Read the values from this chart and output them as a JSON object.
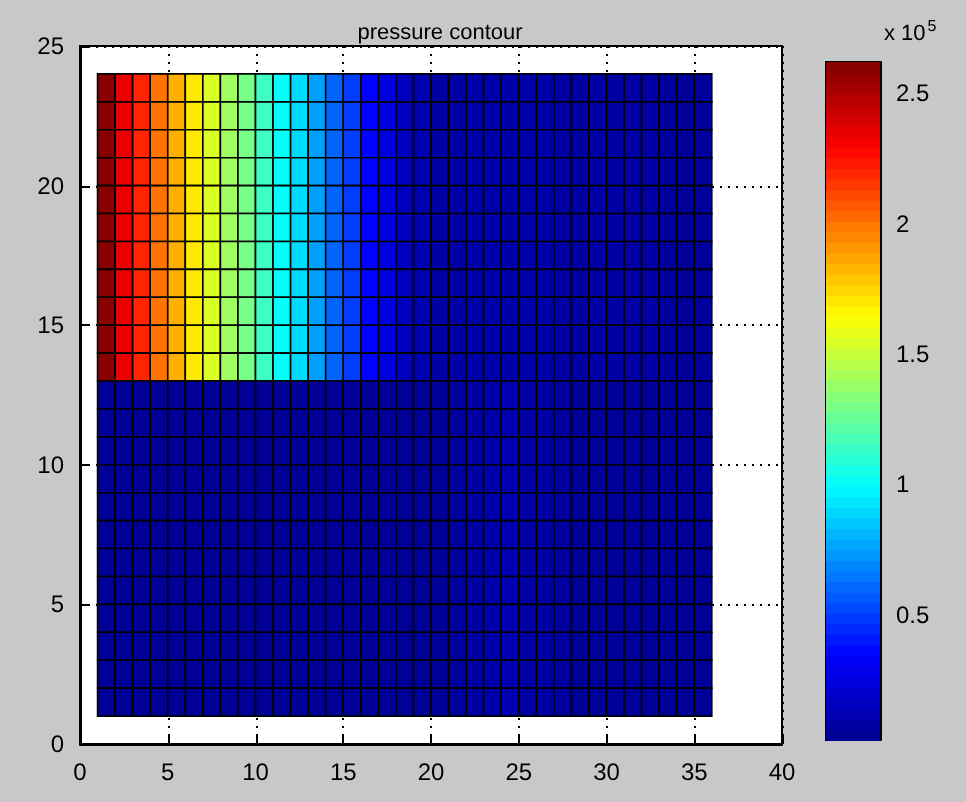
{
  "chart_data": {
    "type": "heatmap",
    "title": "pressure contour",
    "clabel": "x 10$^{5}$",
    "x": [
      1.5,
      2.5,
      3.5,
      4.5,
      5.5,
      6.5,
      7.5,
      8.5,
      9.5,
      10.5,
      11.5,
      12.5,
      13.5,
      14.5,
      15.5,
      16.5,
      17.5,
      18.5,
      19.5,
      20.5,
      21.5,
      22.5,
      23.5,
      24.5,
      25.5,
      26.5,
      27.5,
      28.5,
      29.5,
      30.5,
      31.5,
      32.5,
      33.5,
      34.5,
      35.5
    ],
    "y": [
      23.5,
      22.5,
      21.5,
      20.5,
      19.5,
      18.5,
      17.5,
      16.5,
      15.5,
      14.5,
      13.5,
      12.5,
      11.5,
      10.5,
      9.5,
      8.5,
      7.5,
      6.5,
      5.5,
      4.5,
      3.5,
      2.5,
      1.5
    ],
    "cells": [
      [
        2.6,
        2.35,
        2.2,
        2.0,
        1.85,
        1.7,
        1.55,
        1.4,
        1.3,
        1.15,
        1.0,
        0.9,
        0.75,
        0.6,
        0.5,
        0.35,
        0.25,
        0.15,
        0.12,
        0.08,
        0.08,
        0.1,
        0.1,
        0.1,
        0.1,
        0.1,
        0.08,
        0.08,
        0.08,
        0.08,
        0.08,
        0.08,
        0.06,
        0.05,
        0.06
      ],
      [
        2.6,
        2.35,
        2.2,
        2.0,
        1.85,
        1.7,
        1.55,
        1.4,
        1.3,
        1.15,
        1.0,
        0.9,
        0.75,
        0.6,
        0.5,
        0.35,
        0.25,
        0.15,
        0.12,
        0.08,
        0.08,
        0.1,
        0.1,
        0.1,
        0.1,
        0.1,
        0.08,
        0.08,
        0.08,
        0.08,
        0.08,
        0.08,
        0.06,
        0.05,
        0.06
      ],
      [
        2.6,
        2.35,
        2.2,
        2.0,
        1.85,
        1.7,
        1.55,
        1.4,
        1.3,
        1.15,
        1.0,
        0.9,
        0.75,
        0.6,
        0.5,
        0.35,
        0.25,
        0.15,
        0.12,
        0.08,
        0.08,
        0.1,
        0.1,
        0.1,
        0.1,
        0.1,
        0.08,
        0.08,
        0.08,
        0.08,
        0.08,
        0.08,
        0.06,
        0.05,
        0.06
      ],
      [
        2.6,
        2.35,
        2.2,
        2.0,
        1.85,
        1.7,
        1.55,
        1.4,
        1.3,
        1.15,
        1.0,
        0.9,
        0.75,
        0.6,
        0.5,
        0.35,
        0.25,
        0.15,
        0.12,
        0.08,
        0.08,
        0.1,
        0.1,
        0.1,
        0.1,
        0.1,
        0.08,
        0.08,
        0.08,
        0.08,
        0.08,
        0.08,
        0.06,
        0.05,
        0.06
      ],
      [
        2.6,
        2.35,
        2.2,
        2.0,
        1.85,
        1.7,
        1.55,
        1.4,
        1.3,
        1.15,
        1.0,
        0.9,
        0.75,
        0.6,
        0.5,
        0.35,
        0.25,
        0.15,
        0.12,
        0.08,
        0.08,
        0.1,
        0.1,
        0.1,
        0.1,
        0.1,
        0.08,
        0.08,
        0.08,
        0.08,
        0.08,
        0.08,
        0.06,
        0.05,
        0.06
      ],
      [
        2.6,
        2.35,
        2.2,
        2.0,
        1.85,
        1.7,
        1.55,
        1.4,
        1.3,
        1.15,
        1.0,
        0.9,
        0.75,
        0.6,
        0.5,
        0.35,
        0.25,
        0.15,
        0.12,
        0.08,
        0.08,
        0.1,
        0.1,
        0.1,
        0.1,
        0.1,
        0.08,
        0.08,
        0.08,
        0.08,
        0.08,
        0.08,
        0.06,
        0.05,
        0.06
      ],
      [
        2.6,
        2.35,
        2.2,
        2.0,
        1.85,
        1.7,
        1.55,
        1.4,
        1.3,
        1.15,
        1.0,
        0.9,
        0.75,
        0.6,
        0.5,
        0.35,
        0.25,
        0.15,
        0.12,
        0.08,
        0.08,
        0.1,
        0.1,
        0.1,
        0.1,
        0.1,
        0.08,
        0.08,
        0.08,
        0.08,
        0.08,
        0.08,
        0.06,
        0.05,
        0.06
      ],
      [
        2.6,
        2.35,
        2.2,
        2.0,
        1.85,
        1.7,
        1.55,
        1.4,
        1.3,
        1.15,
        1.0,
        0.9,
        0.75,
        0.6,
        0.5,
        0.35,
        0.25,
        0.15,
        0.12,
        0.08,
        0.08,
        0.1,
        0.1,
        0.1,
        0.1,
        0.1,
        0.08,
        0.08,
        0.08,
        0.08,
        0.08,
        0.08,
        0.06,
        0.05,
        0.06
      ],
      [
        2.6,
        2.35,
        2.2,
        2.0,
        1.85,
        1.7,
        1.55,
        1.4,
        1.3,
        1.15,
        1.0,
        0.9,
        0.75,
        0.6,
        0.5,
        0.35,
        0.25,
        0.15,
        0.12,
        0.08,
        0.08,
        0.1,
        0.1,
        0.1,
        0.1,
        0.1,
        0.08,
        0.08,
        0.08,
        0.08,
        0.08,
        0.08,
        0.06,
        0.05,
        0.06
      ],
      [
        2.6,
        2.35,
        2.2,
        2.0,
        1.85,
        1.7,
        1.55,
        1.4,
        1.3,
        1.15,
        1.0,
        0.9,
        0.75,
        0.6,
        0.5,
        0.35,
        0.25,
        0.15,
        0.12,
        0.08,
        0.08,
        0.1,
        0.1,
        0.1,
        0.1,
        0.1,
        0.08,
        0.08,
        0.08,
        0.08,
        0.08,
        0.08,
        0.06,
        0.05,
        0.06
      ],
      [
        2.6,
        2.35,
        2.2,
        2.0,
        1.85,
        1.7,
        1.55,
        1.4,
        1.3,
        1.15,
        1.0,
        0.9,
        0.75,
        0.6,
        0.5,
        0.35,
        0.25,
        0.15,
        0.12,
        0.08,
        0.08,
        0.1,
        0.1,
        0.1,
        0.1,
        0.1,
        0.08,
        0.08,
        0.08,
        0.08,
        0.08,
        0.08,
        0.06,
        0.05,
        0.06
      ],
      [
        0.04,
        0.04,
        0.04,
        0.04,
        0.04,
        0.04,
        0.04,
        0.04,
        0.04,
        0.04,
        0.04,
        0.04,
        0.04,
        0.04,
        0.04,
        0.04,
        0.04,
        0.04,
        0.04,
        0.04,
        0.06,
        0.08,
        0.1,
        0.12,
        0.08,
        0.08,
        0.07,
        0.05,
        0.05,
        0.05,
        0.05,
        0.05,
        0.05,
        0.05,
        0.05
      ],
      [
        0.04,
        0.04,
        0.04,
        0.04,
        0.04,
        0.04,
        0.04,
        0.04,
        0.04,
        0.04,
        0.04,
        0.04,
        0.04,
        0.04,
        0.04,
        0.04,
        0.04,
        0.04,
        0.04,
        0.04,
        0.06,
        0.08,
        0.1,
        0.12,
        0.08,
        0.08,
        0.07,
        0.05,
        0.05,
        0.05,
        0.05,
        0.05,
        0.05,
        0.05,
        0.05
      ],
      [
        0.04,
        0.04,
        0.04,
        0.04,
        0.04,
        0.04,
        0.04,
        0.04,
        0.04,
        0.04,
        0.04,
        0.04,
        0.04,
        0.04,
        0.04,
        0.04,
        0.04,
        0.04,
        0.04,
        0.04,
        0.06,
        0.08,
        0.1,
        0.12,
        0.08,
        0.08,
        0.07,
        0.05,
        0.05,
        0.05,
        0.05,
        0.05,
        0.05,
        0.05,
        0.05
      ],
      [
        0.04,
        0.04,
        0.04,
        0.04,
        0.04,
        0.04,
        0.04,
        0.04,
        0.04,
        0.04,
        0.04,
        0.04,
        0.04,
        0.04,
        0.04,
        0.04,
        0.04,
        0.04,
        0.04,
        0.04,
        0.06,
        0.08,
        0.1,
        0.12,
        0.08,
        0.08,
        0.07,
        0.05,
        0.05,
        0.05,
        0.05,
        0.05,
        0.05,
        0.05,
        0.05
      ],
      [
        0.04,
        0.04,
        0.04,
        0.04,
        0.04,
        0.04,
        0.04,
        0.04,
        0.04,
        0.04,
        0.04,
        0.04,
        0.04,
        0.04,
        0.04,
        0.04,
        0.04,
        0.04,
        0.04,
        0.04,
        0.06,
        0.08,
        0.1,
        0.12,
        0.08,
        0.08,
        0.07,
        0.05,
        0.05,
        0.05,
        0.05,
        0.05,
        0.05,
        0.05,
        0.05
      ],
      [
        0.04,
        0.04,
        0.04,
        0.04,
        0.04,
        0.04,
        0.04,
        0.04,
        0.04,
        0.04,
        0.04,
        0.04,
        0.04,
        0.04,
        0.04,
        0.04,
        0.04,
        0.04,
        0.04,
        0.04,
        0.06,
        0.08,
        0.1,
        0.12,
        0.08,
        0.08,
        0.07,
        0.05,
        0.05,
        0.05,
        0.05,
        0.05,
        0.05,
        0.05,
        0.05
      ],
      [
        0.04,
        0.04,
        0.04,
        0.04,
        0.04,
        0.04,
        0.04,
        0.04,
        0.04,
        0.04,
        0.04,
        0.04,
        0.04,
        0.04,
        0.04,
        0.04,
        0.04,
        0.04,
        0.04,
        0.04,
        0.06,
        0.08,
        0.1,
        0.12,
        0.08,
        0.08,
        0.07,
        0.05,
        0.05,
        0.05,
        0.05,
        0.05,
        0.05,
        0.05,
        0.05
      ],
      [
        0.04,
        0.04,
        0.04,
        0.04,
        0.04,
        0.04,
        0.04,
        0.04,
        0.04,
        0.04,
        0.04,
        0.04,
        0.04,
        0.04,
        0.04,
        0.04,
        0.04,
        0.04,
        0.04,
        0.04,
        0.06,
        0.08,
        0.1,
        0.12,
        0.08,
        0.08,
        0.07,
        0.05,
        0.05,
        0.05,
        0.05,
        0.05,
        0.05,
        0.05,
        0.05
      ],
      [
        0.04,
        0.04,
        0.04,
        0.04,
        0.04,
        0.04,
        0.04,
        0.04,
        0.04,
        0.04,
        0.04,
        0.04,
        0.04,
        0.04,
        0.04,
        0.04,
        0.04,
        0.04,
        0.04,
        0.04,
        0.06,
        0.08,
        0.1,
        0.12,
        0.08,
        0.08,
        0.07,
        0.05,
        0.05,
        0.05,
        0.05,
        0.05,
        0.05,
        0.05,
        0.05
      ],
      [
        0.04,
        0.04,
        0.04,
        0.04,
        0.04,
        0.04,
        0.04,
        0.04,
        0.04,
        0.04,
        0.04,
        0.04,
        0.04,
        0.04,
        0.04,
        0.04,
        0.04,
        0.04,
        0.04,
        0.04,
        0.06,
        0.08,
        0.1,
        0.12,
        0.08,
        0.08,
        0.07,
        0.05,
        0.05,
        0.05,
        0.05,
        0.05,
        0.05,
        0.05,
        0.05
      ],
      [
        0.04,
        0.04,
        0.04,
        0.04,
        0.04,
        0.04,
        0.04,
        0.04,
        0.04,
        0.04,
        0.04,
        0.04,
        0.04,
        0.04,
        0.04,
        0.04,
        0.04,
        0.04,
        0.04,
        0.04,
        0.06,
        0.08,
        0.1,
        0.12,
        0.08,
        0.08,
        0.07,
        0.05,
        0.05,
        0.05,
        0.05,
        0.05,
        0.05,
        0.05,
        0.05
      ],
      [
        0.04,
        0.04,
        0.04,
        0.04,
        0.04,
        0.04,
        0.04,
        0.04,
        0.04,
        0.04,
        0.04,
        0.04,
        0.04,
        0.04,
        0.04,
        0.04,
        0.04,
        0.04,
        0.04,
        0.04,
        0.06,
        0.08,
        0.1,
        0.12,
        0.08,
        0.08,
        0.07,
        0.05,
        0.05,
        0.05,
        0.05,
        0.05,
        0.05,
        0.05,
        0.05
      ]
    ],
    "xlim": [
      0,
      40
    ],
    "xticks": [
      0,
      5,
      10,
      15,
      20,
      25,
      30,
      35,
      40
    ],
    "ylim": [
      0,
      25
    ],
    "yticks": [
      0,
      5,
      10,
      15,
      20,
      25
    ],
    "clim": [
      0.02,
      2.62
    ],
    "cticks": [
      0.5,
      1,
      1.5,
      2,
      2.5
    ],
    "grid": true
  }
}
